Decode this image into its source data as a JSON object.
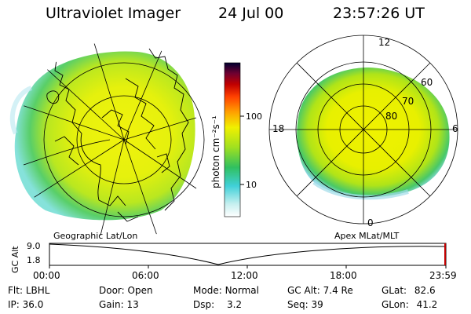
{
  "header": {
    "title": "Ultraviolet Imager",
    "date": "24 Jul 00",
    "time": "23:57:26 UT"
  },
  "colorbar": {
    "unit_label": "photon cm⁻²s⁻¹",
    "tick_100": "100",
    "tick_10": "10",
    "colors": [
      "#ffffff",
      "#c8f0f0",
      "#40d0d8",
      "#30c060",
      "#a0e020",
      "#f0f000",
      "#ffa000",
      "#ff4000",
      "#c00000",
      "#700030",
      "#000030"
    ]
  },
  "maps": {
    "geo_caption": "Geographic Lat/Lon",
    "apex_caption": "Apex MLat/MLT",
    "mlt_labels": {
      "top": "12",
      "bottom": "0",
      "left": "18",
      "right": "6"
    },
    "mlat_labels": {
      "l60": "60",
      "l70": "70",
      "l80": "80"
    }
  },
  "timeline": {
    "axis_title": "GC Alt",
    "y_top": "9.0",
    "y_bottom": "1.8",
    "x_ticks": [
      "00:00",
      "06:00",
      "12:00",
      "18:00",
      "23:59"
    ],
    "cursor_fraction": 0.998
  },
  "status": {
    "flt_label": "Flt:",
    "flt_value": "LBHL",
    "ip_label": "IP:",
    "ip_value": "36.0",
    "door_label": "Door:",
    "door_value": "Open",
    "gain_label": "Gain:",
    "gain_value": "13",
    "mode_label": "Mode:",
    "mode_value": "Normal",
    "dsp_label": "Dsp:",
    "dsp_value": "3.2",
    "gcalt_label": "GC Alt:",
    "gcalt_value": "7.4 Re",
    "seq_label": "Seq:",
    "seq_value": "39",
    "glat_label": "GLat:",
    "glat_value": "82.6",
    "glon_label": "GLon:",
    "glon_value": "41.2"
  }
}
